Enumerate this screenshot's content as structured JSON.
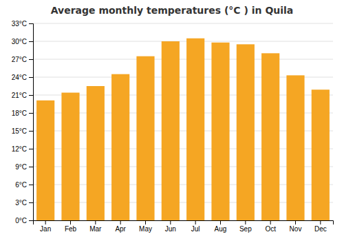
{
  "chart_data": {
    "type": "bar",
    "title": "Average monthly temperatures (°C ) in Quila",
    "categories": [
      "Jan",
      "Feb",
      "Mar",
      "Apr",
      "May",
      "Jun",
      "Jul",
      "Aug",
      "Sep",
      "Oct",
      "Nov",
      "Dec"
    ],
    "values": [
      20.1,
      21.4,
      22.5,
      24.5,
      27.5,
      30.0,
      30.5,
      29.8,
      29.5,
      28.0,
      24.3,
      21.9
    ],
    "color": "#F5A623",
    "ylim": [
      0,
      33
    ],
    "yticks": [
      {
        "value": 0,
        "label": "0°C"
      },
      {
        "value": 3,
        "label": "3°C"
      },
      {
        "value": 6,
        "label": "6°C"
      },
      {
        "value": 9,
        "label": "9°C"
      },
      {
        "value": 12,
        "label": "12°C"
      },
      {
        "value": 15,
        "label": "15°C"
      },
      {
        "value": 18,
        "label": "18°C"
      },
      {
        "value": 21,
        "label": "21°C"
      },
      {
        "value": 24,
        "label": "24°C"
      },
      {
        "value": 27,
        "label": "27°C"
      },
      {
        "value": 30,
        "label": "30°C"
      },
      {
        "value": 33,
        "label": "33°C"
      }
    ],
    "grid": true
  }
}
